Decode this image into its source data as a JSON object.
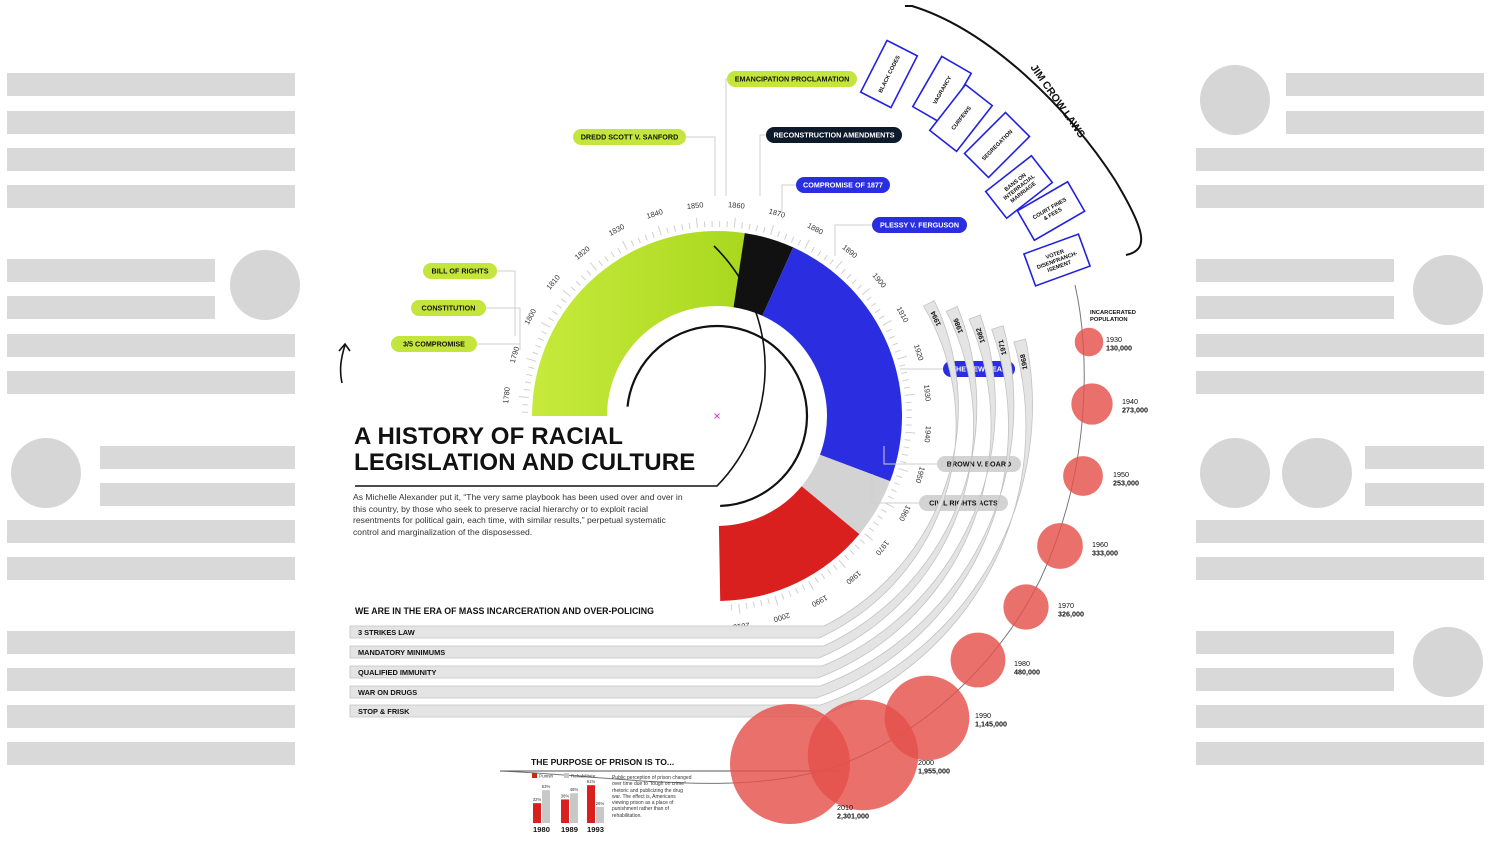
{
  "title": {
    "line1": "A HISTORY OF RACIAL",
    "line2": "LEGISLATION AND CULTURE"
  },
  "intro": "As Michelle Alexander put it, “The very same playbook has been used over and over in this country, by those who seek to preserve racial hierarchy or to exploit racial resentments for political gain, each time, with similar results,” perpetual systematic control and marginalization of the disposessed.",
  "ring": {
    "year_ticks": [
      "1780",
      "1790",
      "1800",
      "1810",
      "1820",
      "1830",
      "1840",
      "1850",
      "1860",
      "1870",
      "1880",
      "1890",
      "1900",
      "1910",
      "1920",
      "1930",
      "1940",
      "1950",
      "1960",
      "1970",
      "1980",
      "1990",
      "2000",
      "2010"
    ],
    "eras": [
      {
        "name": "slavery",
        "from": 1775,
        "to": 1863,
        "color": "#c4e63c"
      },
      {
        "name": "reconstruction",
        "from": 1863,
        "to": 1877,
        "color": "#111111"
      },
      {
        "name": "jim-crow",
        "from": 1877,
        "to": 1954,
        "color": "#2a2ee0"
      },
      {
        "name": "civil-rights",
        "from": 1954,
        "to": 1971,
        "color": "#d3d3d3"
      },
      {
        "name": "mass-incarceration",
        "from": 1971,
        "to": 2015,
        "color": "#d9201e"
      }
    ]
  },
  "events": [
    {
      "label": "EMANCIPATION PROCLAMATION",
      "year": 1863,
      "style": "green"
    },
    {
      "label": "DREDD SCOTT V. SANFORD",
      "year": 1857,
      "style": "green"
    },
    {
      "label": "RECONSTRUCTION AMENDMENTS",
      "year": 1868,
      "style": "dark"
    },
    {
      "label": "COMPROMISE OF 1877",
      "year": 1877,
      "style": "blue"
    },
    {
      "label": "PLESSY V. FERGUSON",
      "year": 1896,
      "style": "blue"
    },
    {
      "label": "BILL OF RIGHTS",
      "year": 1791,
      "style": "green"
    },
    {
      "label": "CONSTITUTION",
      "year": 1788,
      "style": "green"
    },
    {
      "label": "3/5 COMPROMISE",
      "year": 1787,
      "style": "green"
    },
    {
      "label": "THE NEW DEAL",
      "year": 1933,
      "style": "blue"
    },
    {
      "label": "BROWN V. BOARD",
      "year": 1954,
      "style": "gray"
    },
    {
      "label": "CIVIL RIGHTS ACTS",
      "year": 1964,
      "style": "gray"
    }
  ],
  "jim_crow": {
    "title": "JIM CROW LAWS",
    "laws": [
      "BLACK CODES",
      "VAGRANCY",
      "CURFEWS",
      "SEGREGATION",
      "BANS ON INTERRACIAL MARRIAGE",
      "COURT FINES & FEES",
      "VOTER DISENFRANCH- ISEMENT"
    ]
  },
  "era_heading": "WE ARE IN THE ERA OF MASS INCARCERATION AND OVER-POLICING",
  "policies": [
    {
      "label": "3 STRIKES LAW",
      "year": "1994"
    },
    {
      "label": "MANDATORY MINIMUMS",
      "year": "1986"
    },
    {
      "label": "QUALIFIED IMMUNITY",
      "year": "1982"
    },
    {
      "label": "WAR ON DRUGS",
      "year": "1971"
    },
    {
      "label": "STOP & FRISK",
      "year": "1968"
    }
  ],
  "incarcerated": {
    "title": "INCARCERATED POPULATION",
    "points": [
      {
        "year": "1930",
        "value": "130,000",
        "n": 130000
      },
      {
        "year": "1940",
        "value": "273,000",
        "n": 273000
      },
      {
        "year": "1950",
        "value": "253,000",
        "n": 253000
      },
      {
        "year": "1960",
        "value": "333,000",
        "n": 333000
      },
      {
        "year": "1970",
        "value": "326,000",
        "n": 326000
      },
      {
        "year": "1980",
        "value": "480,000",
        "n": 480000
      },
      {
        "year": "1990",
        "value": "1,145,000",
        "n": 1145000
      },
      {
        "year": "2000",
        "value": "1,955,000",
        "n": 1955000
      },
      {
        "year": "2010",
        "value": "2,301,000",
        "n": 2301000
      }
    ]
  },
  "purpose": {
    "title": "THE PURPOSE OF PRISON IS TO...",
    "legend": [
      "Punish",
      "Rehabilitate"
    ],
    "colors": {
      "punish": "#d9201e",
      "rehabilitate": "#c8c8c8"
    },
    "groups": [
      {
        "year": "1980",
        "punish": 32,
        "rehabilitate": 53,
        "punish_label": "32%",
        "rehab_label": "53%"
      },
      {
        "year": "1989",
        "punish": 38,
        "rehabilitate": 48,
        "punish_label": "38%",
        "rehab_label": "48%"
      },
      {
        "year": "1993",
        "punish": 61,
        "rehabilitate": 26,
        "punish_label": "61%",
        "rehab_label": "26%"
      }
    ],
    "note": "Public perception of prison changed over time due to “tough on crime” rhetoric and publicizing the drug war. The effect is, Americans viewing prison as a place of punishment rather than of rehabilitation."
  },
  "colors": {
    "green": "#c4e63c",
    "blue": "#2a2ee0",
    "dark": "#0d1a2b",
    "gray": "#d3d3d3",
    "red": "#d9201e",
    "bubble": "#e5504c",
    "outline_blue": "#2222dd"
  }
}
